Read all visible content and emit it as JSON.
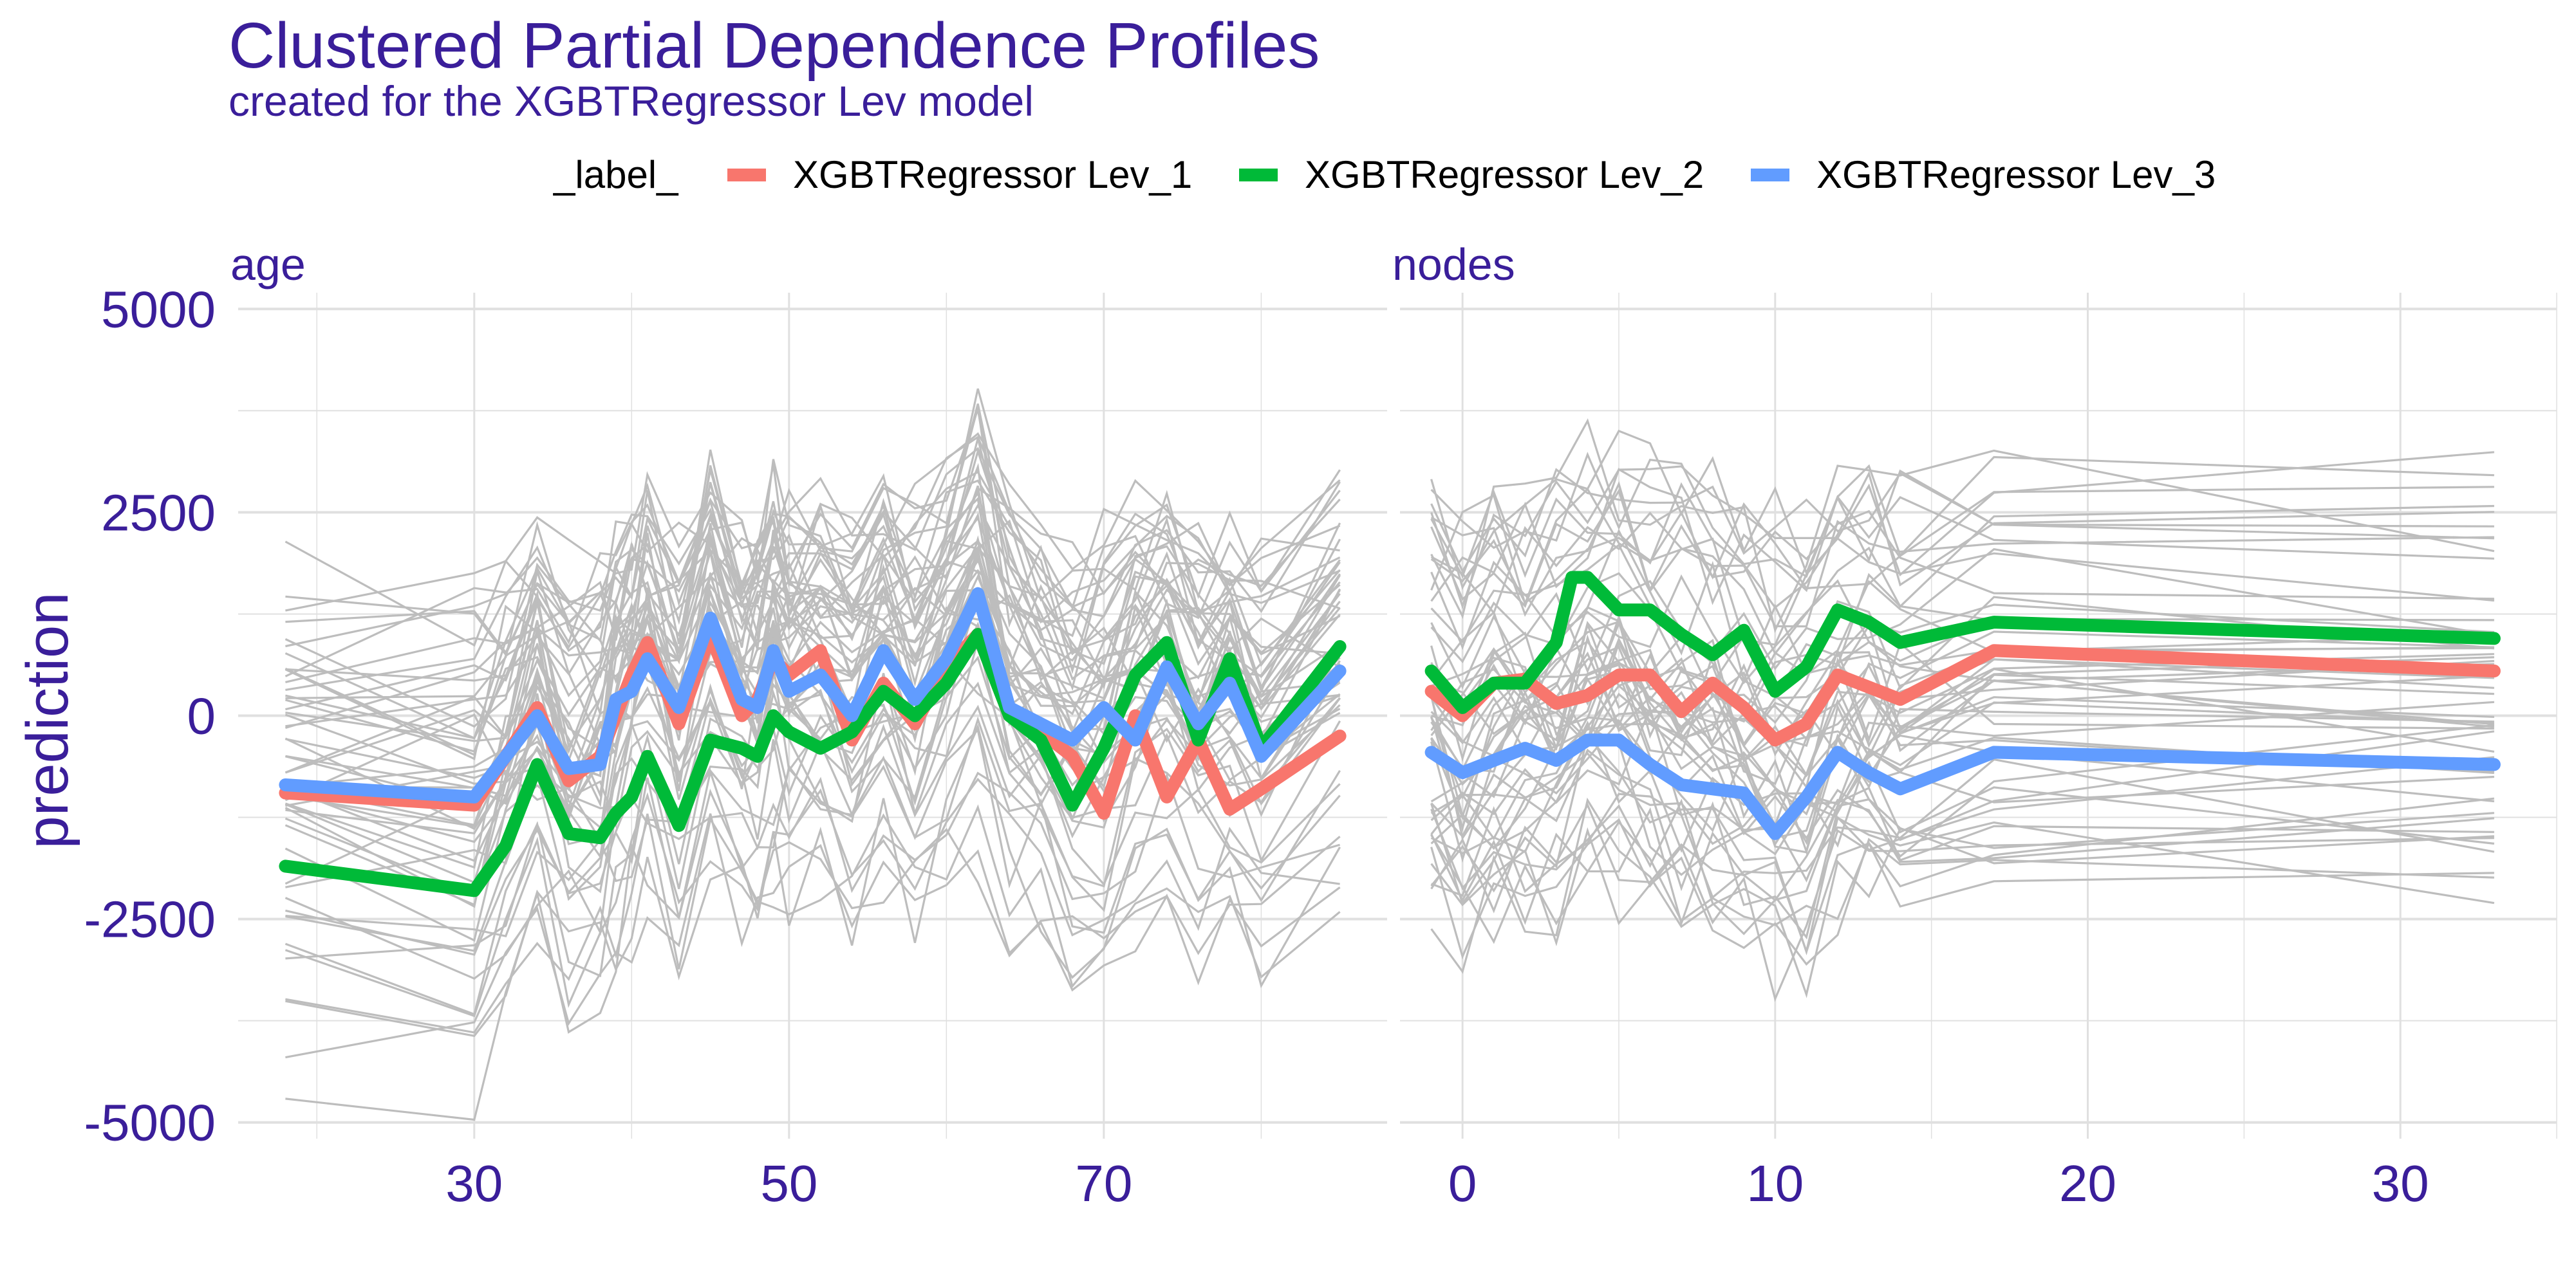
{
  "title": "Clustered Partial Dependence Profiles",
  "subtitle": "created for the XGBTRegressor Lev model",
  "legend": {
    "title": "_label_",
    "items": [
      {
        "label": "XGBTRegressor Lev_1",
        "color": "#f8766d"
      },
      {
        "label": "XGBTRegressor Lev_2",
        "color": "#00ba38"
      },
      {
        "label": "XGBTRegressor Lev_3",
        "color": "#619cff"
      }
    ]
  },
  "colors": {
    "title": "#3a1e9a",
    "grid": "#e0e0e0",
    "ice": "#bdbdbd"
  },
  "chart_data": {
    "type": "line",
    "ylabel": "prediction",
    "ylim": [
      -5200,
      5200
    ],
    "yticks": [
      5000,
      2500,
      0,
      -2500,
      -5000
    ],
    "ytick_labels": [
      "5000",
      "2500",
      "0",
      "-2500",
      "-5000"
    ],
    "grid": true,
    "legend_position": "top",
    "panels": [
      {
        "name": "age",
        "xlim": [
          15,
          88
        ],
        "xticks": [
          30,
          50,
          70
        ],
        "xtick_labels": [
          "30",
          "50",
          "70"
        ],
        "series": [
          {
            "name": "XGBTRegressor Lev_1",
            "color": "#f8766d",
            "x": [
              18,
              30,
              32,
              34,
              36,
              38,
              39,
              40,
              41,
              43,
              45,
              47,
              48,
              49,
              50,
              52,
              54,
              56,
              58,
              60,
              62,
              64,
              66,
              68,
              70,
              72,
              74,
              76,
              78,
              80,
              85
            ],
            "y": [
              -950,
              -1100,
              -500,
              100,
              -800,
              -500,
              0,
              500,
              900,
              -100,
              1000,
              0,
              200,
              700,
              500,
              800,
              -300,
              400,
              -100,
              600,
              1000,
              0,
              -200,
              -500,
              -1200,
              0,
              -1000,
              -300,
              -1150,
              -900,
              -250
            ]
          },
          {
            "name": "XGBTRegressor Lev_2",
            "color": "#00ba38",
            "x": [
              18,
              30,
              32,
              34,
              36,
              38,
              39,
              40,
              41,
              43,
              45,
              47,
              48,
              49,
              50,
              52,
              54,
              56,
              58,
              60,
              62,
              64,
              66,
              68,
              70,
              72,
              74,
              76,
              78,
              80,
              85
            ],
            "y": [
              -1850,
              -2150,
              -1600,
              -600,
              -1450,
              -1500,
              -1200,
              -1000,
              -500,
              -1350,
              -300,
              -400,
              -500,
              0,
              -200,
              -400,
              -200,
              300,
              0,
              400,
              1000,
              0,
              -300,
              -1100,
              -400,
              500,
              900,
              -300,
              700,
              -400,
              850
            ]
          },
          {
            "name": "XGBTRegressor Lev_3",
            "color": "#619cff",
            "x": [
              18,
              30,
              32,
              34,
              36,
              38,
              39,
              40,
              41,
              43,
              45,
              47,
              48,
              49,
              50,
              52,
              54,
              56,
              58,
              60,
              62,
              64,
              66,
              68,
              70,
              72,
              74,
              76,
              78,
              80,
              85
            ],
            "y": [
              -850,
              -1000,
              -500,
              0,
              -650,
              -600,
              200,
              300,
              700,
              100,
              1200,
              200,
              100,
              800,
              300,
              500,
              0,
              800,
              200,
              700,
              1500,
              100,
              -100,
              -300,
              100,
              -300,
              600,
              -100,
              400,
              -500,
              550
            ]
          }
        ]
      },
      {
        "name": "nodes",
        "xlim": [
          -2,
          35
        ],
        "xticks": [
          0,
          10,
          20,
          30
        ],
        "xtick_labels": [
          "0",
          "10",
          "20",
          "30"
        ],
        "series": [
          {
            "name": "XGBTRegressor Lev_1",
            "color": "#f8766d",
            "x": [
              -1,
              0,
              1,
              2,
              3,
              4,
              5,
              6,
              7,
              8,
              9,
              10,
              11,
              12,
              13,
              14,
              17,
              33
            ],
            "y": [
              300,
              0,
              400,
              450,
              150,
              250,
              500,
              500,
              50,
              400,
              100,
              -300,
              -100,
              500,
              350,
              200,
              800,
              550
            ]
          },
          {
            "name": "XGBTRegressor Lev_2",
            "color": "#00ba38",
            "x": [
              -1,
              0,
              1,
              2,
              3,
              3.5,
              4,
              5,
              6,
              7,
              8,
              9,
              10,
              11,
              12,
              13,
              14,
              17,
              33
            ],
            "y": [
              550,
              100,
              400,
              400,
              900,
              1700,
              1700,
              1300,
              1300,
              1000,
              750,
              1050,
              300,
              600,
              1300,
              1150,
              900,
              1150,
              950
            ]
          },
          {
            "name": "XGBTRegressor Lev_3",
            "color": "#619cff",
            "x": [
              -1,
              0,
              1,
              2,
              3,
              4,
              5,
              6,
              7,
              8,
              9,
              10,
              11,
              12,
              13,
              14,
              17,
              33
            ],
            "y": [
              -450,
              -700,
              -550,
              -400,
              -550,
              -300,
              -300,
              -600,
              -850,
              -900,
              -950,
              -1450,
              -1000,
              -450,
              -700,
              -900,
              -450,
              -600
            ]
          }
        ]
      }
    ]
  }
}
